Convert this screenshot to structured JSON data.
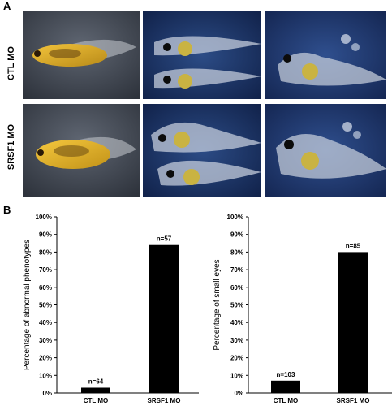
{
  "panels": {
    "a": "A",
    "b": "B"
  },
  "rows": [
    {
      "label": "CTL MO"
    },
    {
      "label": "SRSF1 MO"
    }
  ],
  "chart_data": [
    {
      "type": "bar",
      "ylabel": "Percentage of abnormal phenotypes",
      "xlabel": "",
      "categories": [
        "CTL MO",
        "SRSF1 MO"
      ],
      "values": [
        3,
        84
      ],
      "bar_labels": [
        "n=64",
        "n=57"
      ],
      "ylim": [
        0,
        100
      ],
      "yticks": [
        "0%",
        "10%",
        "20%",
        "30%",
        "40%",
        "50%",
        "60%",
        "70%",
        "80%",
        "90%",
        "100%"
      ],
      "grid": false,
      "bar_color": "#000000"
    },
    {
      "type": "bar",
      "ylabel": "Percentage of small eyes",
      "xlabel": "",
      "categories": [
        "CTL MO",
        "SRSF1 MO"
      ],
      "values": [
        7,
        80
      ],
      "bar_labels": [
        "n=103",
        "n=85"
      ],
      "ylim": [
        0,
        100
      ],
      "yticks": [
        "0%",
        "10%",
        "20%",
        "30%",
        "40%",
        "50%",
        "60%",
        "70%",
        "80%",
        "90%",
        "100%"
      ],
      "grid": false,
      "bar_color": "#000000"
    }
  ]
}
